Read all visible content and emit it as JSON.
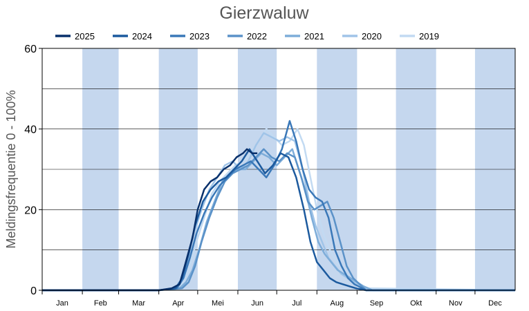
{
  "chart_data": {
    "type": "line",
    "title": "Gierzwaluw",
    "ylabel": "Meldingsfrequentie 0 - 100%",
    "ylim": [
      0,
      60
    ],
    "yticks": [
      0,
      20,
      40,
      60
    ],
    "xlim": [
      0,
      365
    ],
    "months": [
      {
        "label": "Jan",
        "start": 0,
        "end": 31,
        "shaded": false
      },
      {
        "label": "Feb",
        "start": 31,
        "end": 59,
        "shaded": true
      },
      {
        "label": "Mar",
        "start": 59,
        "end": 90,
        "shaded": false
      },
      {
        "label": "Apr",
        "start": 90,
        "end": 120,
        "shaded": true
      },
      {
        "label": "Mei",
        "start": 120,
        "end": 151,
        "shaded": false
      },
      {
        "label": "Jun",
        "start": 151,
        "end": 181,
        "shaded": true
      },
      {
        "label": "Jul",
        "start": 181,
        "end": 212,
        "shaded": false
      },
      {
        "label": "Aug",
        "start": 212,
        "end": 243,
        "shaded": true
      },
      {
        "label": "Sep",
        "start": 243,
        "end": 273,
        "shaded": false
      },
      {
        "label": "Okt",
        "start": 273,
        "end": 304,
        "shaded": true
      },
      {
        "label": "Nov",
        "start": 304,
        "end": 334,
        "shaded": false
      },
      {
        "label": "Dec",
        "start": 334,
        "end": 365,
        "shaded": true
      }
    ],
    "grid": "horizontal",
    "legend": "top",
    "series": [
      {
        "name": "2025",
        "color": "#08306b",
        "x": [
          0,
          90,
          100,
          106,
          110,
          116,
          120,
          125,
          130,
          135,
          140,
          145,
          150,
          155,
          158,
          162,
          166
        ],
        "values": [
          0,
          0,
          0.5,
          1.5,
          6,
          13,
          20,
          25,
          27,
          28,
          30,
          31,
          33,
          34,
          35,
          34,
          34
        ]
      },
      {
        "name": "2024",
        "color": "#1c5a9e",
        "x": [
          0,
          90,
          103,
          108,
          113,
          118,
          124,
          130,
          136,
          142,
          148,
          154,
          160,
          166,
          172,
          178,
          184,
          190,
          196,
          202,
          207,
          212,
          217,
          222,
          227,
          232,
          237,
          242,
          250,
          365
        ],
        "values": [
          0,
          0,
          0.5,
          3,
          9,
          16,
          22,
          25,
          27,
          28,
          30,
          32,
          35,
          32,
          29,
          31,
          34,
          33,
          28,
          20,
          12,
          7,
          5,
          3,
          2,
          1.5,
          1,
          0.5,
          0,
          0
        ]
      },
      {
        "name": "2023",
        "color": "#3a78b8",
        "x": [
          0,
          90,
          104,
          109,
          114,
          119,
          125,
          131,
          137,
          143,
          149,
          155,
          161,
          167,
          173,
          179,
          185,
          191,
          196,
          201,
          206,
          211,
          216,
          221,
          226,
          231,
          236,
          241,
          250,
          365
        ],
        "values": [
          0,
          0,
          0.5,
          3,
          8,
          14,
          19,
          23,
          26,
          28,
          30,
          31,
          32,
          30,
          28,
          31,
          35,
          42,
          37,
          30,
          25,
          23,
          22,
          18,
          10,
          6,
          3,
          1.5,
          0,
          0
        ]
      },
      {
        "name": "2022",
        "color": "#5b92c8",
        "x": [
          0,
          90,
          108,
          113,
          118,
          123,
          129,
          135,
          141,
          147,
          153,
          159,
          165,
          171,
          177,
          183,
          189,
          195,
          200,
          205,
          210,
          215,
          220,
          225,
          230,
          235,
          240,
          245,
          250,
          365
        ],
        "values": [
          0,
          0,
          0.5,
          2,
          6,
          12,
          18,
          23,
          27,
          29,
          30,
          31,
          33,
          35,
          33,
          32,
          34,
          33,
          28,
          22,
          20,
          21,
          22,
          18,
          12,
          6,
          3,
          1.5,
          0,
          0
        ]
      },
      {
        "name": "2021",
        "color": "#7eadd9",
        "x": [
          0,
          90,
          106,
          111,
          116,
          121,
          127,
          133,
          139,
          145,
          151,
          157,
          163,
          169,
          175,
          181,
          187,
          193,
          198,
          203,
          208,
          213,
          218,
          223,
          228,
          233,
          238,
          243,
          248,
          255,
          365
        ],
        "values": [
          0,
          0,
          0.5,
          2,
          5,
          10,
          17,
          22,
          27,
          29,
          30,
          30,
          32,
          34,
          33,
          31,
          33,
          35,
          30,
          25,
          18,
          12,
          9,
          7,
          5,
          4,
          3,
          2,
          1,
          0,
          0
        ]
      },
      {
        "name": "2020",
        "color": "#a0c4e8",
        "x": [
          0,
          90,
          102,
          107,
          112,
          117,
          123,
          129,
          135,
          141,
          147,
          153,
          159,
          165,
          171,
          177,
          183,
          189,
          195,
          201,
          206,
          211,
          216,
          221,
          226,
          231,
          236,
          241,
          246,
          255,
          365
        ],
        "values": [
          0,
          0,
          0.5,
          2,
          7,
          14,
          20,
          25,
          28,
          31,
          32,
          30,
          32,
          36,
          39,
          38,
          37,
          38,
          37,
          30,
          22,
          16,
          12,
          8,
          6,
          4,
          3,
          2,
          1,
          0,
          0
        ]
      },
      {
        "name": "2019",
        "color": "#c2daf2",
        "x": [
          0,
          90,
          104,
          109,
          114,
          119,
          125,
          131,
          137,
          143,
          149,
          155,
          161,
          167,
          173,
          179,
          185,
          191,
          197,
          202,
          207,
          212,
          217,
          222,
          227,
          232,
          237,
          242,
          247,
          252,
          365
        ],
        "values": [
          0,
          0,
          0.5,
          2,
          6,
          12,
          18,
          24,
          27,
          29,
          31,
          32,
          34,
          37,
          40,
          38,
          36,
          37,
          40,
          36,
          28,
          20,
          14,
          10,
          7,
          5,
          3,
          2,
          1,
          0.5,
          0
        ]
      }
    ]
  }
}
